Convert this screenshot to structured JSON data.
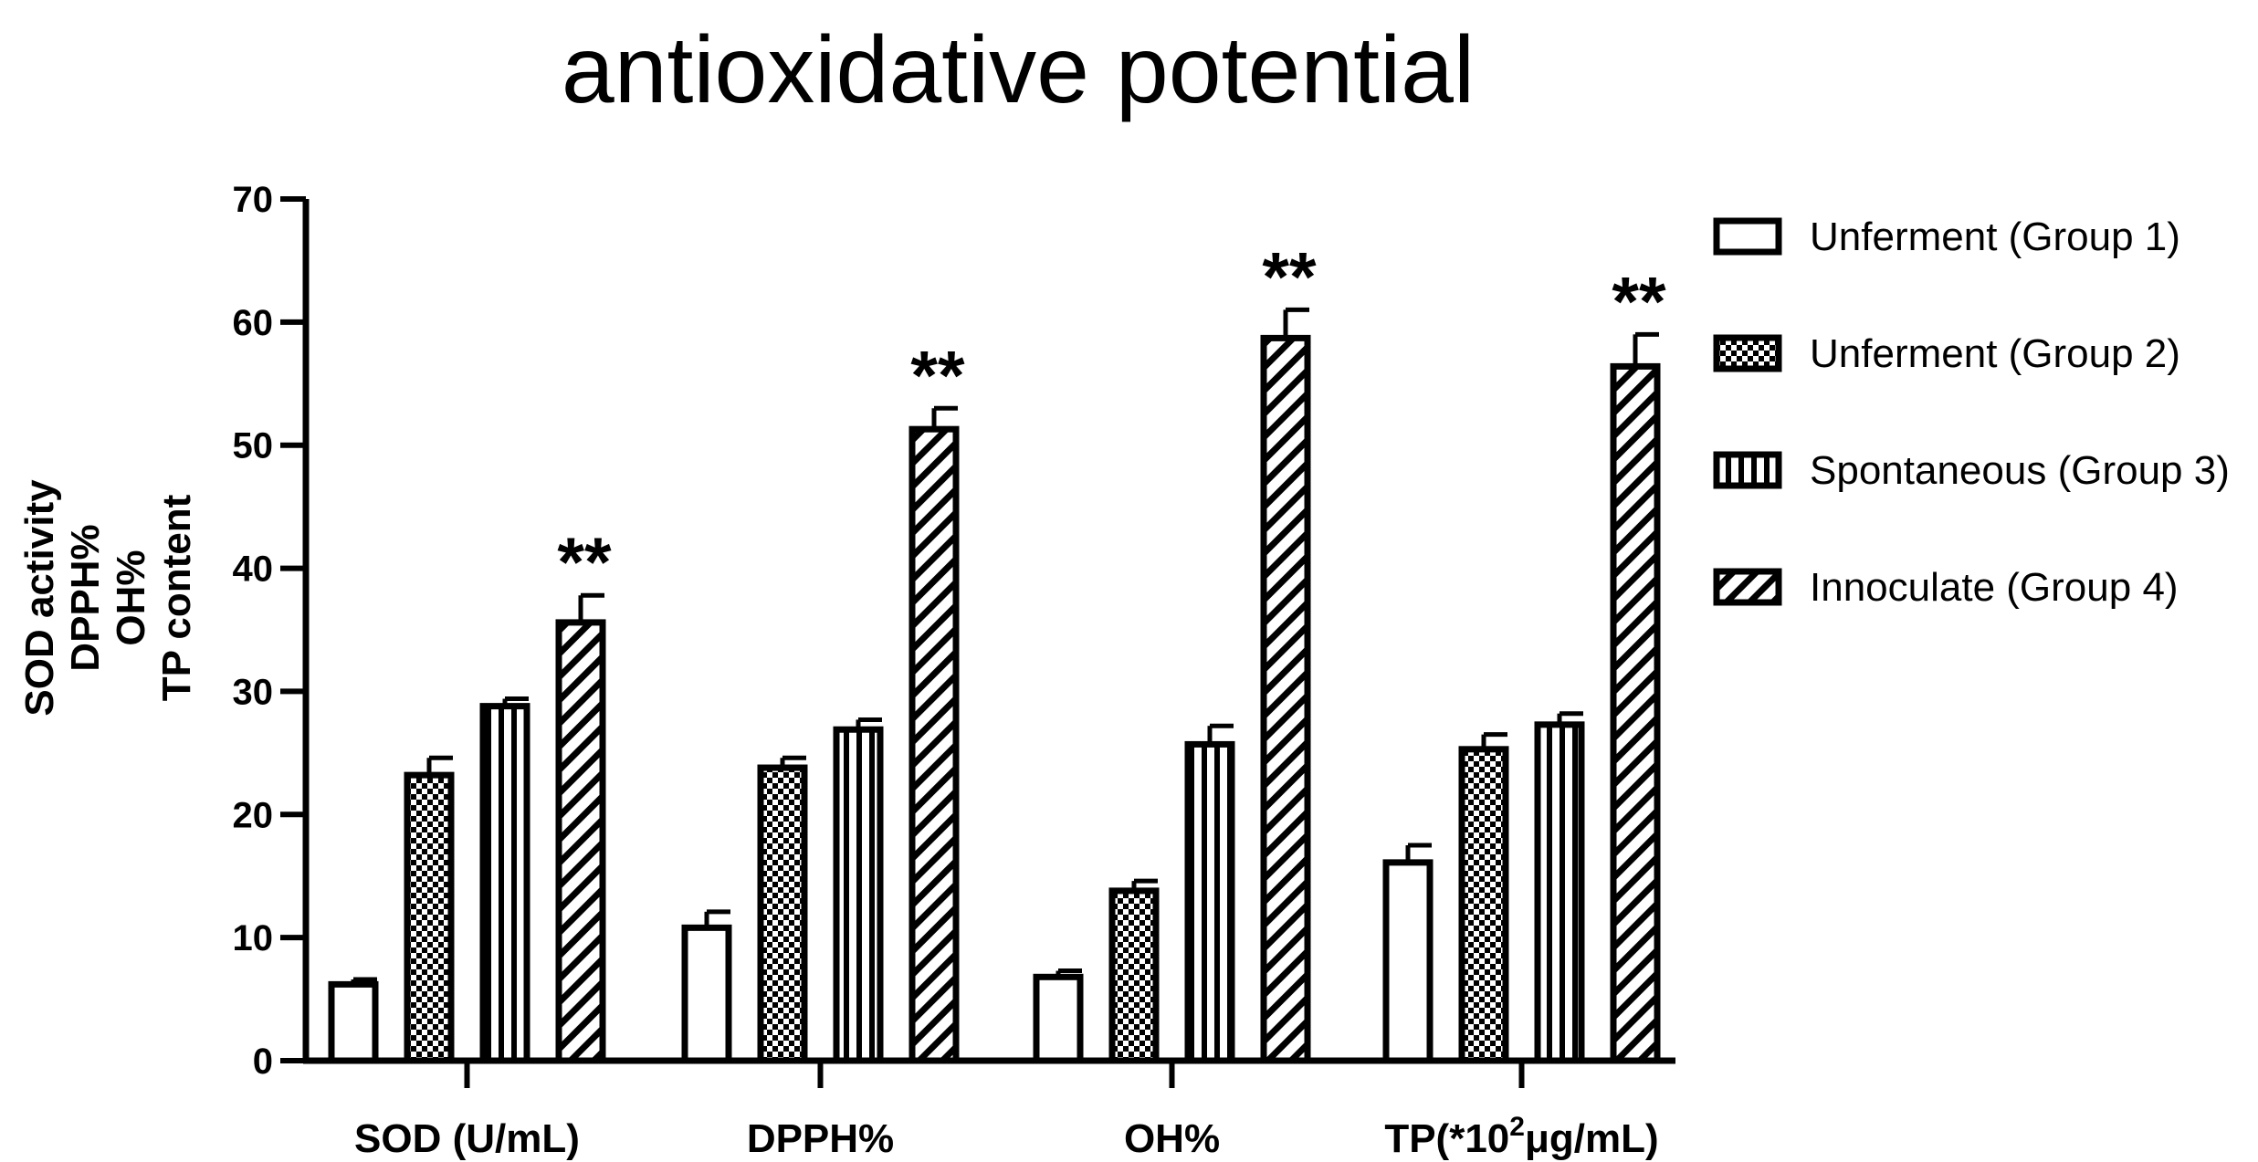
{
  "chart_data": {
    "type": "bar",
    "title": "antioxidative potential",
    "ylabel_lines": [
      "SOD activity",
      "DPPH%",
      "OH%",
      "TP content"
    ],
    "xlabel": "",
    "ylim": [
      0,
      70
    ],
    "yticks": [
      0,
      10,
      20,
      30,
      40,
      50,
      60,
      70
    ],
    "categories": [
      "SOD (U/mL)",
      "DPPH%",
      "OH%",
      "TP(*10²μg/mL)"
    ],
    "series": [
      {
        "name": "Unferment (Group 1)",
        "pattern": "none",
        "values": [
          6.2,
          10.8,
          6.8,
          16.1
        ],
        "errors": [
          0.4,
          1.3,
          0.5,
          1.4
        ]
      },
      {
        "name": "Unferment (Group 2)",
        "pattern": "checker",
        "values": [
          23.2,
          23.8,
          13.8,
          25.3
        ],
        "errors": [
          1.4,
          0.8,
          0.8,
          1.2
        ]
      },
      {
        "name": "Spontaneous (Group 3)",
        "pattern": "vertical",
        "values": [
          28.8,
          26.9,
          25.7,
          27.3
        ],
        "errors": [
          0.6,
          0.8,
          1.5,
          0.9
        ]
      },
      {
        "name": "Innoculate (Group 4)",
        "pattern": "diagonal",
        "values": [
          35.6,
          51.3,
          58.7,
          56.4
        ],
        "errors": [
          2.2,
          1.7,
          2.3,
          2.6
        ]
      }
    ],
    "annotations": [
      {
        "category_index": 0,
        "series_index": 3,
        "text": "**"
      },
      {
        "category_index": 1,
        "series_index": 3,
        "text": "**"
      },
      {
        "category_index": 2,
        "series_index": 3,
        "text": "**"
      },
      {
        "category_index": 3,
        "series_index": 3,
        "text": "**"
      }
    ],
    "legend_position": "right",
    "grid": false,
    "colors": {
      "stroke": "#000000",
      "fill": "#ffffff"
    }
  }
}
